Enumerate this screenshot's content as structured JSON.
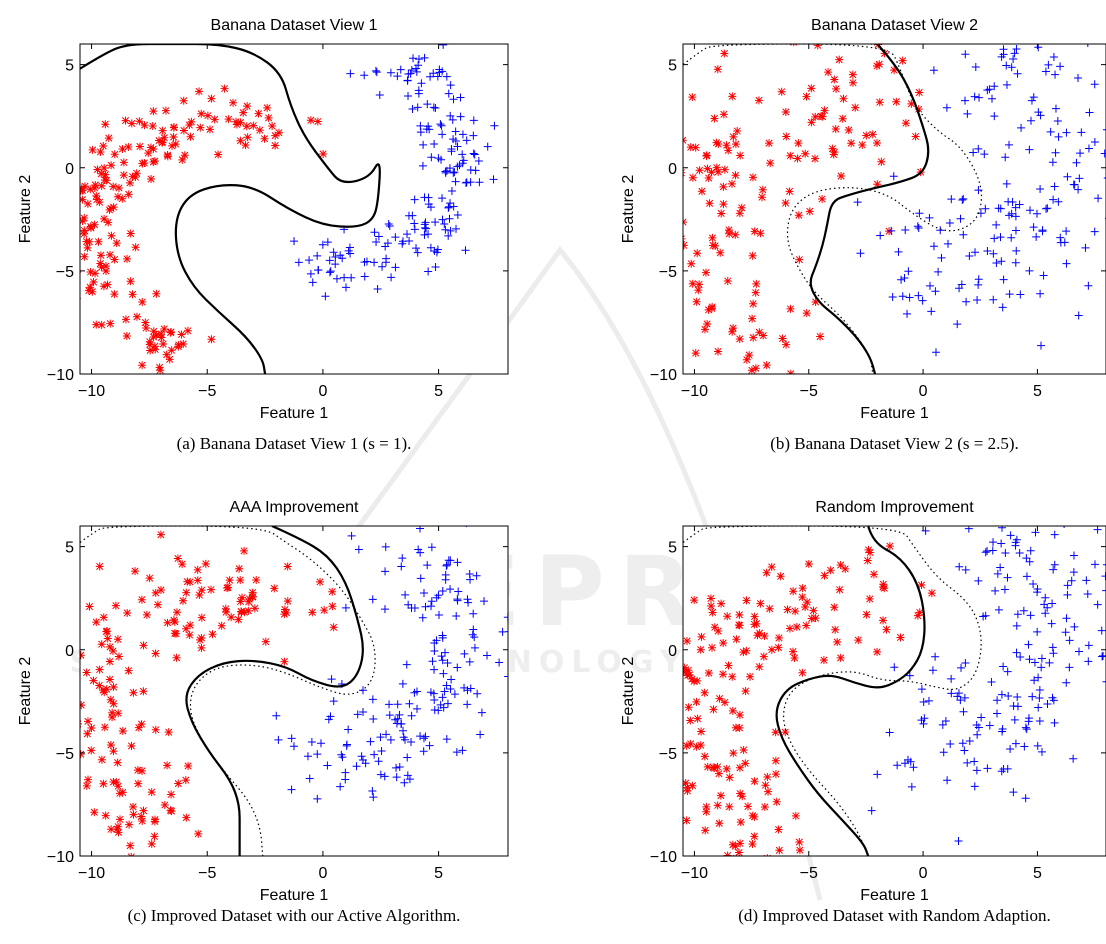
{
  "watermark": {
    "brand": "SCITEPRESS",
    "tagline": "SCIENCE AND TECHNOLOGY PUBLICATIONS",
    "color": "#c8c8c8"
  },
  "colors": {
    "red": "#ff0000",
    "blue": "#0000ff",
    "boundary": "#000000"
  },
  "chart_data": [
    {
      "type": "scatter",
      "title": "Banana Dataset View 1",
      "caption": "(a) Banana Dataset View 1 (s = 1).",
      "xlabel": "Feature 1",
      "ylabel": "Feature 2",
      "xlim": [
        -10.5,
        8
      ],
      "ylim": [
        -10,
        6
      ],
      "xticks": [
        -10,
        -5,
        0,
        5
      ],
      "yticks": [
        -10,
        -5,
        0,
        5
      ],
      "grid": false,
      "noise": 0.6,
      "seed": 11,
      "series": [
        {
          "marker": "asterisk",
          "color": "#ff0000",
          "count": 190,
          "shape": "arc",
          "center": [
            -4,
            -3.5
          ],
          "radius": 6.0,
          "from_deg": 60,
          "to_deg": 250
        },
        {
          "marker": "plus",
          "color": "#0000ff",
          "count": 180,
          "shape": "arc",
          "center": [
            1,
            0.5
          ],
          "radius": 5.0,
          "from_deg": -110,
          "to_deg": 70
        }
      ],
      "boundaries": [
        {
          "style": "solid",
          "points": [
            [
              -10.5,
              4.8
            ],
            [
              -9.5,
              5.5
            ],
            [
              -8.5,
              6
            ],
            [
              -6.5,
              6
            ],
            [
              -4.5,
              6
            ],
            [
              -3,
              5.6
            ],
            [
              -1.8,
              4.6
            ],
            [
              -1.4,
              3
            ],
            [
              -0.8,
              1.5
            ],
            [
              0.2,
              0
            ],
            [
              0.8,
              -0.8
            ],
            [
              2.0,
              -0.5
            ],
            [
              2.5,
              0.5
            ],
            [
              2.4,
              -1.5
            ],
            [
              2.2,
              -2.5
            ],
            [
              1.5,
              -2.9
            ],
            [
              0,
              -2.8
            ],
            [
              -1.5,
              -2.0
            ],
            [
              -3,
              -0.9
            ],
            [
              -4.5,
              -0.8
            ],
            [
              -5.8,
              -1.3
            ],
            [
              -6.4,
              -2.5
            ],
            [
              -6.3,
              -4.3
            ],
            [
              -5.6,
              -5.8
            ],
            [
              -4.5,
              -7
            ],
            [
              -3.3,
              -8.2
            ],
            [
              -2.6,
              -9.3
            ],
            [
              -2.5,
              -10
            ]
          ]
        }
      ]
    },
    {
      "type": "scatter",
      "title": "Banana Dataset View 2",
      "caption": "(b) Banana Dataset View 2 (s = 2.5).",
      "xlabel": "Feature 1",
      "ylabel": "Feature 2",
      "xlim": [
        -10.5,
        8
      ],
      "ylim": [
        -10,
        6
      ],
      "xticks": [
        -10,
        -5,
        0,
        5
      ],
      "yticks": [
        -10,
        -5,
        0,
        5
      ],
      "grid": false,
      "noise": 1.8,
      "seed": 23,
      "series": [
        {
          "marker": "asterisk",
          "color": "#ff0000",
          "count": 190,
          "shape": "arc",
          "center": [
            -4,
            -3.5
          ],
          "radius": 6.0,
          "from_deg": 60,
          "to_deg": 250
        },
        {
          "marker": "plus",
          "color": "#0000ff",
          "count": 180,
          "shape": "arc",
          "center": [
            1,
            0.5
          ],
          "radius": 5.0,
          "from_deg": -110,
          "to_deg": 70
        }
      ],
      "boundaries": [
        {
          "style": "solid",
          "points": [
            [
              -2,
              6
            ],
            [
              -1.2,
              5
            ],
            [
              -0.5,
              3.6
            ],
            [
              0,
              2
            ],
            [
              0.3,
              0.8
            ],
            [
              0,
              -0.3
            ],
            [
              -1,
              -0.7
            ],
            [
              -2.2,
              -1
            ],
            [
              -3.2,
              -1.3
            ],
            [
              -4,
              -1.6
            ],
            [
              -4.2,
              -2.8
            ],
            [
              -4.4,
              -3.8
            ],
            [
              -4.7,
              -4.8
            ],
            [
              -5,
              -5.6
            ],
            [
              -4.6,
              -6.5
            ],
            [
              -3.8,
              -7.2
            ],
            [
              -2.9,
              -8.2
            ],
            [
              -2.3,
              -9.2
            ],
            [
              -2.1,
              -10
            ]
          ]
        },
        {
          "style": "dotted",
          "points": [
            [
              -10.5,
              5
            ],
            [
              -9.8,
              5.6
            ],
            [
              -9.2,
              6
            ],
            [
              -1.5,
              6
            ],
            [
              -1,
              4.8
            ],
            [
              -0.4,
              3
            ],
            [
              0.6,
              1.8
            ],
            [
              1.7,
              1
            ],
            [
              2.6,
              -0.8
            ],
            [
              2.5,
              -2.3
            ],
            [
              1.8,
              -3
            ],
            [
              0.8,
              -3.1
            ],
            [
              -0.5,
              -2.2
            ],
            [
              -1.5,
              -1.3
            ],
            [
              -3,
              -0.9
            ],
            [
              -4.8,
              -1.1
            ],
            [
              -5.8,
              -2
            ],
            [
              -6,
              -3.5
            ],
            [
              -5.5,
              -4.8
            ],
            [
              -4.8,
              -6
            ],
            [
              -3.6,
              -7.2
            ],
            [
              -2.8,
              -8.3
            ],
            [
              -2.3,
              -9.2
            ],
            [
              -2.2,
              -10
            ]
          ]
        }
      ]
    },
    {
      "type": "scatter",
      "title": "AAA Improvement",
      "caption": "(c) Improved Dataset with our Active Algorithm.",
      "xlabel": "Feature 1",
      "ylabel": "Feature 2",
      "xlim": [
        -10.5,
        8
      ],
      "ylim": [
        -10,
        6
      ],
      "xticks": [
        -10,
        -5,
        0,
        5
      ],
      "yticks": [
        -10,
        -5,
        0,
        5
      ],
      "grid": false,
      "noise": 1.2,
      "seed": 37,
      "series": [
        {
          "marker": "asterisk",
          "color": "#ff0000",
          "count": 190,
          "shape": "arc",
          "center": [
            -4,
            -3.5
          ],
          "radius": 6.0,
          "from_deg": 60,
          "to_deg": 250
        },
        {
          "marker": "plus",
          "color": "#0000ff",
          "count": 180,
          "shape": "arc",
          "center": [
            1,
            0.5
          ],
          "radius": 5.0,
          "from_deg": -110,
          "to_deg": 70
        }
      ],
      "boundaries": [
        {
          "style": "solid",
          "points": [
            [
              -2.2,
              6
            ],
            [
              -1,
              5.4
            ],
            [
              0.2,
              4.6
            ],
            [
              1,
              3.3
            ],
            [
              1.5,
              1.5
            ],
            [
              1.8,
              0
            ],
            [
              1.5,
              -1.3
            ],
            [
              0.8,
              -1.9
            ],
            [
              -0.5,
              -1.5
            ],
            [
              -1.6,
              -0.8
            ],
            [
              -3,
              -0.5
            ],
            [
              -4.3,
              -0.6
            ],
            [
              -5.4,
              -1.2
            ],
            [
              -6,
              -2.2
            ],
            [
              -5.7,
              -3.5
            ],
            [
              -4.9,
              -5
            ],
            [
              -4,
              -6.3
            ],
            [
              -3.6,
              -7.5
            ],
            [
              -3.6,
              -8.8
            ],
            [
              -3.6,
              -10
            ]
          ]
        },
        {
          "style": "dotted",
          "points": [
            [
              -10.5,
              5.2
            ],
            [
              -9.9,
              5.7
            ],
            [
              -9.4,
              6
            ],
            [
              -2.6,
              6
            ],
            [
              -1.6,
              5.2
            ],
            [
              -0.5,
              4.4
            ],
            [
              0.8,
              3
            ],
            [
              1.6,
              1.6
            ],
            [
              2.3,
              0.2
            ],
            [
              2.2,
              -1.6
            ],
            [
              1.2,
              -2.3
            ],
            [
              -0.2,
              -1.8
            ],
            [
              -1.6,
              -1.1
            ],
            [
              -3,
              -0.7
            ],
            [
              -4.6,
              -0.8
            ],
            [
              -5.6,
              -1.7
            ],
            [
              -5.8,
              -3
            ],
            [
              -5.2,
              -4.5
            ],
            [
              -4.2,
              -6
            ],
            [
              -3.2,
              -7.3
            ],
            [
              -2.7,
              -8.6
            ],
            [
              -2.6,
              -10
            ]
          ]
        }
      ]
    },
    {
      "type": "scatter",
      "title": "Random Improvement",
      "caption": "(d) Improved Dataset with Random Adaption.",
      "xlabel": "Feature 1",
      "ylabel": "Feature 2",
      "xlim": [
        -10.5,
        8
      ],
      "ylim": [
        -10,
        6
      ],
      "xticks": [
        -10,
        -5,
        0,
        5
      ],
      "yticks": [
        -10,
        -5,
        0,
        5
      ],
      "grid": false,
      "noise": 1.5,
      "seed": 53,
      "series": [
        {
          "marker": "asterisk",
          "color": "#ff0000",
          "count": 190,
          "shape": "arc",
          "center": [
            -4,
            -3.5
          ],
          "radius": 6.0,
          "from_deg": 60,
          "to_deg": 250
        },
        {
          "marker": "plus",
          "color": "#0000ff",
          "count": 180,
          "shape": "arc",
          "center": [
            1,
            0.5
          ],
          "radius": 5.0,
          "from_deg": -110,
          "to_deg": 70
        }
      ],
      "boundaries": [
        {
          "style": "solid",
          "points": [
            [
              -2.4,
              6
            ],
            [
              -2.2,
              5.2
            ],
            [
              -1,
              4.5
            ],
            [
              -0.2,
              3.2
            ],
            [
              0.1,
              1.5
            ],
            [
              0,
              0
            ],
            [
              -0.5,
              -1
            ],
            [
              -1.2,
              -1.6
            ],
            [
              -2,
              -1.9
            ],
            [
              -3,
              -1.6
            ],
            [
              -4,
              -1.2
            ],
            [
              -5,
              -1.4
            ],
            [
              -6,
              -1.9
            ],
            [
              -6.5,
              -3
            ],
            [
              -6.2,
              -4.3
            ],
            [
              -5.5,
              -5.6
            ],
            [
              -4.6,
              -7
            ],
            [
              -3.5,
              -8.3
            ],
            [
              -2.6,
              -9.4
            ],
            [
              -2.4,
              -10
            ]
          ]
        },
        {
          "style": "dotted",
          "points": [
            [
              -10.5,
              5.2
            ],
            [
              -9.9,
              5.7
            ],
            [
              -9.4,
              6
            ],
            [
              -1,
              6
            ],
            [
              -0.4,
              5
            ],
            [
              0.6,
              3.5
            ],
            [
              1.8,
              2.5
            ],
            [
              2.4,
              1.5
            ],
            [
              2.6,
              0.2
            ],
            [
              2.3,
              -1.3
            ],
            [
              1.5,
              -2
            ],
            [
              0.5,
              -1.8
            ],
            [
              -0.6,
              -1.5
            ],
            [
              -1.8,
              -1.5
            ],
            [
              -3,
              -1
            ],
            [
              -4.5,
              -1.2
            ],
            [
              -5.8,
              -1.9
            ],
            [
              -6.2,
              -3.2
            ],
            [
              -5.8,
              -4.6
            ],
            [
              -4.9,
              -6
            ],
            [
              -3.8,
              -7.3
            ],
            [
              -2.9,
              -8.7
            ],
            [
              -2.4,
              -10
            ]
          ]
        }
      ]
    }
  ]
}
